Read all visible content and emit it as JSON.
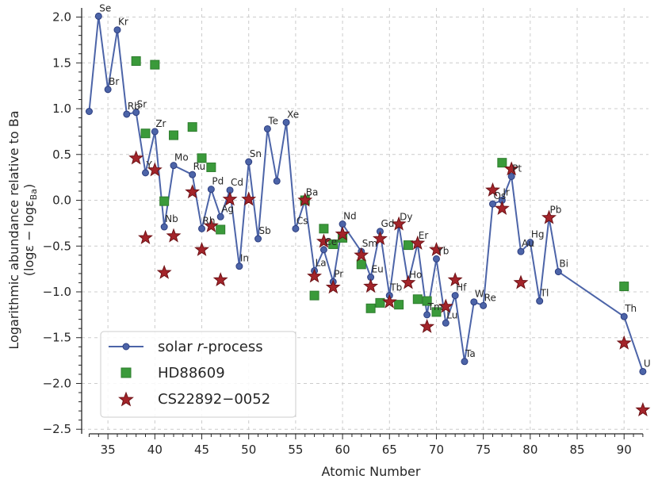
{
  "chart_data": {
    "type": "scatter",
    "xlabel": "Atomic Number",
    "ylabel_line1": "Logarithmic abundance relative to Ba",
    "ylabel_line2": "(logε − logε",
    "ylabel_sub": "Ba",
    "ylabel_close": ")",
    "xlim": [
      32.2,
      92.6
    ],
    "ylim": [
      -2.55,
      2.1
    ],
    "xticks": [
      35,
      40,
      45,
      50,
      55,
      60,
      65,
      70,
      75,
      80,
      85,
      90
    ],
    "xtick_labels": [
      "35",
      "40",
      "45",
      "50",
      "55",
      "60",
      "65",
      "70",
      "75",
      "80",
      "85",
      "90"
    ],
    "yticks": [
      2.0,
      1.5,
      1.0,
      0.5,
      0.0,
      -0.5,
      -1.0,
      -1.5,
      -2.0,
      -2.5
    ],
    "ytick_labels": [
      "2.0",
      "1.5",
      "1.0",
      "0.5",
      "0.0",
      "−0.5",
      "−1.0",
      "−1.5",
      "−2.0",
      "−2.5"
    ],
    "grid": true,
    "legend_position": "lower-left",
    "series": [
      {
        "name": "solar",
        "name_italic": "r",
        "name_suffix": "-process",
        "marker": "circle-line",
        "color": "#4c64a8",
        "points": [
          {
            "z": 33,
            "y": 0.97,
            "label": ""
          },
          {
            "z": 34,
            "y": 2.01,
            "label": "Se"
          },
          {
            "z": 35,
            "y": 1.21,
            "label": "Br"
          },
          {
            "z": 36,
            "y": 1.86,
            "label": "Kr"
          },
          {
            "z": 37,
            "y": 0.94,
            "label": "Rb"
          },
          {
            "z": 38,
            "y": 0.96,
            "label": "Sr"
          },
          {
            "z": 39,
            "y": 0.3,
            "label": "Y"
          },
          {
            "z": 40,
            "y": 0.75,
            "label": "Zr"
          },
          {
            "z": 41,
            "y": -0.29,
            "label": "Nb"
          },
          {
            "z": 42,
            "y": 0.38,
            "label": "Mo"
          },
          {
            "z": 44,
            "y": 0.28,
            "label": "Ru"
          },
          {
            "z": 45,
            "y": -0.31,
            "label": "Rh"
          },
          {
            "z": 46,
            "y": 0.12,
            "label": "Pd"
          },
          {
            "z": 47,
            "y": -0.18,
            "label": "Ag"
          },
          {
            "z": 48,
            "y": 0.11,
            "label": "Cd"
          },
          {
            "z": 49,
            "y": -0.72,
            "label": "In"
          },
          {
            "z": 50,
            "y": 0.42,
            "label": "Sn"
          },
          {
            "z": 51,
            "y": -0.42,
            "label": "Sb"
          },
          {
            "z": 52,
            "y": 0.78,
            "label": "Te"
          },
          {
            "z": 53,
            "y": 0.21,
            "label": ""
          },
          {
            "z": 54,
            "y": 0.85,
            "label": "Xe"
          },
          {
            "z": 55,
            "y": -0.31,
            "label": "Cs"
          },
          {
            "z": 56,
            "y": 0.0,
            "label": "Ba"
          },
          {
            "z": 57,
            "y": -0.77,
            "label": "La"
          },
          {
            "z": 58,
            "y": -0.54,
            "label": "Ce"
          },
          {
            "z": 59,
            "y": -0.89,
            "label": "Pr"
          },
          {
            "z": 60,
            "y": -0.26,
            "label": "Nd"
          },
          {
            "z": 62,
            "y": -0.56,
            "label": "Sm"
          },
          {
            "z": 63,
            "y": -0.84,
            "label": "Eu"
          },
          {
            "z": 64,
            "y": -0.34,
            "label": "Gd"
          },
          {
            "z": 65,
            "y": -1.04,
            "label": "Tb"
          },
          {
            "z": 66,
            "y": -0.27,
            "label": "Dy"
          },
          {
            "z": 67,
            "y": -0.9,
            "label": "Ho"
          },
          {
            "z": 68,
            "y": -0.47,
            "label": "Er"
          },
          {
            "z": 69,
            "y": -1.25,
            "label": "Tm"
          },
          {
            "z": 70,
            "y": -0.64,
            "label": "Yb"
          },
          {
            "z": 71,
            "y": -1.34,
            "label": "Lu"
          },
          {
            "z": 72,
            "y": -1.04,
            "label": "Hf"
          },
          {
            "z": 73,
            "y": -1.76,
            "label": "Ta"
          },
          {
            "z": 74,
            "y": -1.11,
            "label": "W"
          },
          {
            "z": 75,
            "y": -1.15,
            "label": "Re"
          },
          {
            "z": 76,
            "y": -0.04,
            "label": "Os"
          },
          {
            "z": 77,
            "y": 0.0,
            "label": "Ir"
          },
          {
            "z": 78,
            "y": 0.26,
            "label": "Pt"
          },
          {
            "z": 79,
            "y": -0.56,
            "label": "Au"
          },
          {
            "z": 80,
            "y": -0.46,
            "label": "Hg"
          },
          {
            "z": 81,
            "y": -1.1,
            "label": "Tl"
          },
          {
            "z": 82,
            "y": -0.19,
            "label": "Pb"
          },
          {
            "z": 83,
            "y": -0.78,
            "label": "Bi"
          },
          {
            "z": 90,
            "y": -1.27,
            "label": "Th"
          },
          {
            "z": 92,
            "y": -1.87,
            "label": "U"
          }
        ]
      },
      {
        "name": "HD88609",
        "marker": "square",
        "color": "#3a9a3a",
        "points": [
          {
            "z": 38,
            "y": 1.52
          },
          {
            "z": 39,
            "y": 0.73
          },
          {
            "z": 40,
            "y": 1.48
          },
          {
            "z": 41,
            "y": -0.01
          },
          {
            "z": 42,
            "y": 0.71
          },
          {
            "z": 44,
            "y": 0.8
          },
          {
            "z": 45,
            "y": 0.46
          },
          {
            "z": 46,
            "y": 0.36
          },
          {
            "z": 47,
            "y": -0.32
          },
          {
            "z": 56,
            "y": 0.0
          },
          {
            "z": 57,
            "y": -1.04
          },
          {
            "z": 58,
            "y": -0.31
          },
          {
            "z": 59,
            "y": -0.48
          },
          {
            "z": 60,
            "y": -0.41
          },
          {
            "z": 62,
            "y": -0.7
          },
          {
            "z": 63,
            "y": -1.18
          },
          {
            "z": 64,
            "y": -1.12
          },
          {
            "z": 66,
            "y": -1.14
          },
          {
            "z": 67,
            "y": -0.49
          },
          {
            "z": 68,
            "y": -1.08
          },
          {
            "z": 69,
            "y": -1.1
          },
          {
            "z": 70,
            "y": -1.22
          },
          {
            "z": 77,
            "y": 0.41
          },
          {
            "z": 90,
            "y": -0.94
          }
        ]
      },
      {
        "name": "CS22892−0052",
        "marker": "star",
        "color": "#a3242a",
        "points": [
          {
            "z": 38,
            "y": 0.46
          },
          {
            "z": 39,
            "y": -0.41
          },
          {
            "z": 40,
            "y": 0.33
          },
          {
            "z": 41,
            "y": -0.79
          },
          {
            "z": 42,
            "y": -0.39
          },
          {
            "z": 44,
            "y": 0.09
          },
          {
            "z": 45,
            "y": -0.54
          },
          {
            "z": 46,
            "y": -0.28
          },
          {
            "z": 47,
            "y": -0.87
          },
          {
            "z": 48,
            "y": 0.01
          },
          {
            "z": 50,
            "y": 0.01
          },
          {
            "z": 56,
            "y": 0.0
          },
          {
            "z": 57,
            "y": -0.83
          },
          {
            "z": 58,
            "y": -0.45
          },
          {
            "z": 59,
            "y": -0.95
          },
          {
            "z": 60,
            "y": -0.37
          },
          {
            "z": 62,
            "y": -0.6
          },
          {
            "z": 63,
            "y": -0.94
          },
          {
            "z": 64,
            "y": -0.42
          },
          {
            "z": 65,
            "y": -1.11
          },
          {
            "z": 66,
            "y": -0.26
          },
          {
            "z": 67,
            "y": -0.9
          },
          {
            "z": 68,
            "y": -0.47
          },
          {
            "z": 69,
            "y": -1.38
          },
          {
            "z": 70,
            "y": -0.54
          },
          {
            "z": 71,
            "y": -1.16
          },
          {
            "z": 72,
            "y": -0.87
          },
          {
            "z": 76,
            "y": 0.11
          },
          {
            "z": 77,
            "y": -0.09
          },
          {
            "z": 78,
            "y": 0.34
          },
          {
            "z": 79,
            "y": -0.9
          },
          {
            "z": 82,
            "y": -0.19
          },
          {
            "z": 90,
            "y": -1.56
          },
          {
            "z": 92,
            "y": -2.29
          }
        ]
      }
    ]
  }
}
